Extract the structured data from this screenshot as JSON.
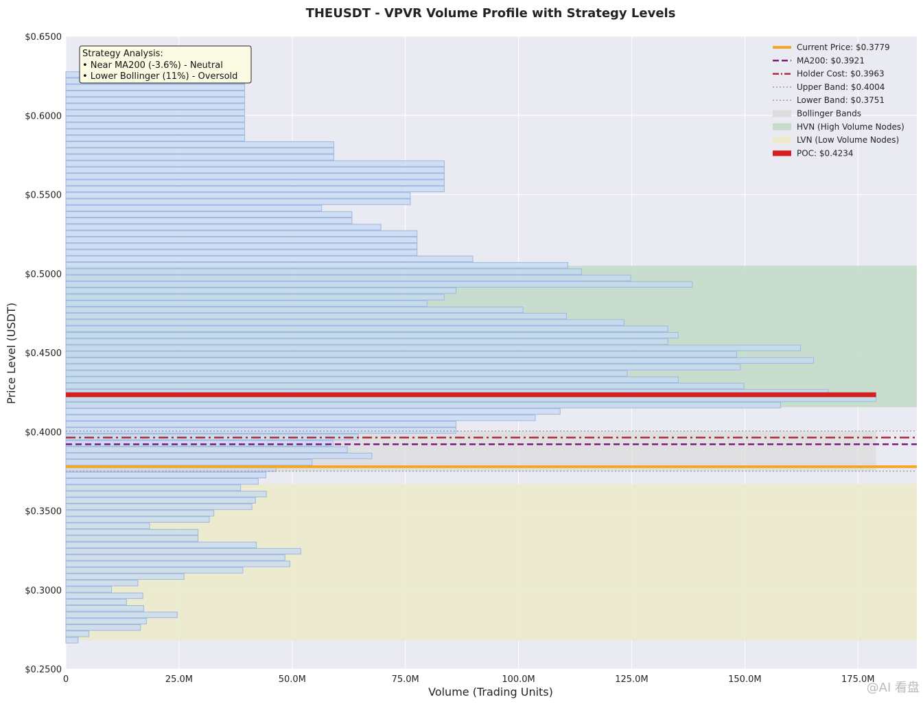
{
  "chart_data": {
    "type": "bar",
    "orientation": "horizontal",
    "title": "THEUSDT - VPVR Volume Profile with Strategy Levels",
    "xlabel": "Volume (Trading Units)",
    "ylabel": "Price Level (USDT)",
    "xlim": [
      0,
      188000000
    ],
    "ylim": [
      0.25,
      0.65
    ],
    "x_ticks": [
      0,
      25000000,
      50000000,
      75000000,
      100000000,
      125000000,
      150000000,
      175000000
    ],
    "x_tick_labels": [
      "0",
      "25.0M",
      "50.0M",
      "75.0M",
      "100.0M",
      "125.0M",
      "150.0M",
      "175.0M"
    ],
    "y_ticks": [
      0.25,
      0.3,
      0.35,
      0.4,
      0.45,
      0.5,
      0.55,
      0.6,
      0.65
    ],
    "y_tick_labels": [
      "$0.2500",
      "$0.3000",
      "$0.3500",
      "$0.4000",
      "$0.4500",
      "$0.5000",
      "$0.5500",
      "$0.6000",
      "$0.6500"
    ],
    "grid": true,
    "legend_position": "top-right",
    "bin_height": 0.00402,
    "bins": {
      "prices": [
        0.2682,
        0.2722,
        0.2762,
        0.2802,
        0.2842,
        0.2883,
        0.2923,
        0.2963,
        0.3003,
        0.3043,
        0.3084,
        0.3124,
        0.3164,
        0.3204,
        0.3244,
        0.3284,
        0.3325,
        0.3365,
        0.3405,
        0.3445,
        0.3485,
        0.3526,
        0.3566,
        0.3606,
        0.3646,
        0.3686,
        0.3726,
        0.3767,
        0.3807,
        0.3847,
        0.3887,
        0.3927,
        0.3967,
        0.4008,
        0.4048,
        0.4088,
        0.4128,
        0.4168,
        0.4209,
        0.4249,
        0.4289,
        0.4329,
        0.4369,
        0.4409,
        0.445,
        0.449,
        0.453,
        0.457,
        0.461,
        0.4651,
        0.4691,
        0.4731,
        0.4771,
        0.4811,
        0.4851,
        0.4892,
        0.4932,
        0.4972,
        0.5012,
        0.5052,
        0.5093,
        0.5133,
        0.5173,
        0.5213,
        0.5253,
        0.5294,
        0.5334,
        0.5374,
        0.5414,
        0.5454,
        0.5494,
        0.5535,
        0.5575,
        0.5615,
        0.5655,
        0.5695,
        0.5736,
        0.5776,
        0.5816,
        0.5856,
        0.5896,
        0.5936,
        0.5977,
        0.6017,
        0.6057,
        0.6097,
        0.6137,
        0.6178,
        0.6218,
        0.6258,
        0.6298
      ],
      "volumes": [
        2700000,
        5100000,
        16500000,
        17800000,
        24600000,
        17200000,
        13400000,
        17000000,
        10100000,
        15900000,
        26100000,
        39100000,
        49500000,
        48400000,
        51900000,
        42100000,
        29200000,
        29200000,
        18500000,
        31700000,
        32700000,
        41100000,
        41900000,
        44300000,
        38600000,
        42500000,
        44200000,
        46400000,
        54400000,
        67600000,
        62200000,
        59000000,
        64600000,
        86200000,
        86200000,
        103700000,
        109200000,
        157900000,
        179000000,
        168400000,
        149800000,
        135300000,
        124000000,
        149000000,
        165200000,
        148200000,
        162300000,
        133000000,
        135300000,
        133000000,
        123300000,
        110600000,
        101000000,
        79800000,
        83600000,
        86200000,
        138400000,
        124800000,
        113900000,
        110900000,
        89900000,
        77600000,
        77600000,
        77600000,
        77600000,
        69600000,
        63200000,
        63200000,
        56500000,
        76100000,
        76100000,
        83600000,
        83600000,
        83600000,
        83600000,
        83600000,
        59200000,
        59200000,
        59200000,
        39500000,
        39500000,
        39500000,
        39500000,
        39500000,
        39500000,
        39500000,
        39500000,
        39500000,
        39500000,
        39500000,
        0
      ]
    },
    "levels": {
      "current_price": 0.3779,
      "ma200": 0.3921,
      "holder_cost": 0.3963,
      "upper_band": 0.4004,
      "lower_band": 0.3751,
      "poc": 0.4234,
      "poc_volume": 179000000
    },
    "zones": {
      "hvn": [
        0.4155,
        0.505
      ],
      "lvn": [
        0.268,
        0.367
      ],
      "bollinger_x_max": 179000000
    },
    "legend": [
      {
        "key": "current",
        "label": "Current Price: $0.3779"
      },
      {
        "key": "ma200",
        "label": "MA200: $0.3921"
      },
      {
        "key": "holder",
        "label": "Holder Cost: $0.3963"
      },
      {
        "key": "upper",
        "label": "Upper Band: $0.4004"
      },
      {
        "key": "lower",
        "label": "Lower Band: $0.3751"
      },
      {
        "key": "bollinger",
        "label": "Bollinger Bands"
      },
      {
        "key": "hvn",
        "label": "HVN (High Volume Nodes)"
      },
      {
        "key": "lvn",
        "label": "LVN (Low Volume Nodes)"
      },
      {
        "key": "poc",
        "label": "POC: $0.4234"
      }
    ],
    "annotation": {
      "lines": [
        "Strategy Analysis:",
        "• Near MA200 (-3.6%) - Neutral",
        "• Lower Bollinger (11%) - Oversold"
      ]
    }
  },
  "colors": {
    "plot_bg": "#eaeaf2",
    "grid": "#ffffff",
    "bar_fill": "#c5d9f2",
    "bar_edge": "#9db7e0",
    "current": "#f5a623",
    "ma200": "#7b1a7f",
    "holder": "#b22a3a",
    "bands": "#9a9a9a",
    "bollinger_fill": "#dcdcdc",
    "hvn_fill": "#c6dccb",
    "lvn_fill": "#ecebcc",
    "poc": "#d42020",
    "annotation_bg": "#fbfbe3"
  },
  "watermark": "@AI 看盘"
}
